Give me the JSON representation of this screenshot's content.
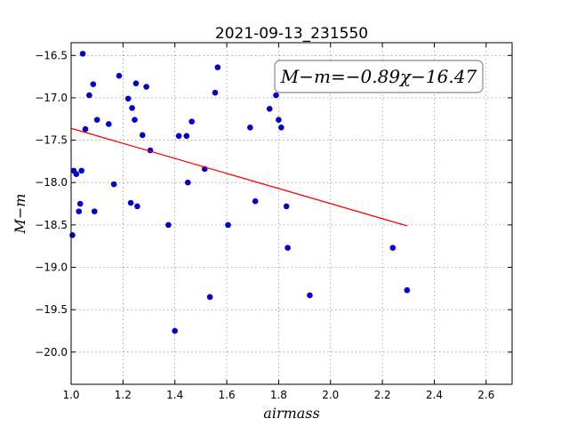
{
  "chart_data": {
    "type": "scatter",
    "title": "2021-09-13_231550",
    "xlabel": "airmass",
    "ylabel": "M−m",
    "xlim": [
      1.0,
      2.7
    ],
    "ylim": [
      -16.35,
      -20.38
    ],
    "y_inverted": true,
    "grid": true,
    "xticks": [
      "1.0",
      "1.2",
      "1.4",
      "1.6",
      "1.8",
      "2.0",
      "2.2",
      "2.4",
      "2.6"
    ],
    "yticks": [
      "−16.5",
      "−17.0",
      "−17.5",
      "−18.0",
      "−18.5",
      "−19.0",
      "−19.5",
      "−20.0"
    ],
    "annotation": "M−m=−0.89χ−16.47",
    "point_color": "#0000cc",
    "line_color": "#ff0000",
    "series": [
      {
        "type": "scatter",
        "x": [
          1.005,
          1.01,
          1.02,
          1.03,
          1.035,
          1.04,
          1.045,
          1.055,
          1.07,
          1.085,
          1.09,
          1.1,
          1.145,
          1.165,
          1.185,
          1.22,
          1.23,
          1.235,
          1.245,
          1.25,
          1.255,
          1.275,
          1.29,
          1.305,
          1.375,
          1.4,
          1.415,
          1.445,
          1.45,
          1.465,
          1.515,
          1.535,
          1.555,
          1.565,
          1.605,
          1.69,
          1.71,
          1.765,
          1.79,
          1.8,
          1.81,
          1.83,
          1.835,
          1.92,
          2.24,
          2.295
        ],
        "y": [
          -18.62,
          -17.86,
          -17.9,
          -18.34,
          -18.25,
          -17.86,
          -16.48,
          -17.37,
          -16.97,
          -16.84,
          -18.34,
          -17.26,
          -17.31,
          -18.02,
          -16.74,
          -17.01,
          -18.24,
          -17.12,
          -17.26,
          -16.83,
          -18.28,
          -17.44,
          -16.87,
          -17.62,
          -18.5,
          -19.75,
          -17.45,
          -17.45,
          -18.0,
          -17.28,
          -17.84,
          -19.35,
          -16.94,
          -16.64,
          -18.5,
          -17.35,
          -18.22,
          -17.13,
          -16.97,
          -17.26,
          -17.35,
          -18.28,
          -18.77,
          -19.33,
          -18.77,
          -19.27
        ]
      },
      {
        "type": "line",
        "x": [
          1.0,
          2.295
        ],
        "y": [
          -17.36,
          -18.51
        ]
      }
    ]
  }
}
